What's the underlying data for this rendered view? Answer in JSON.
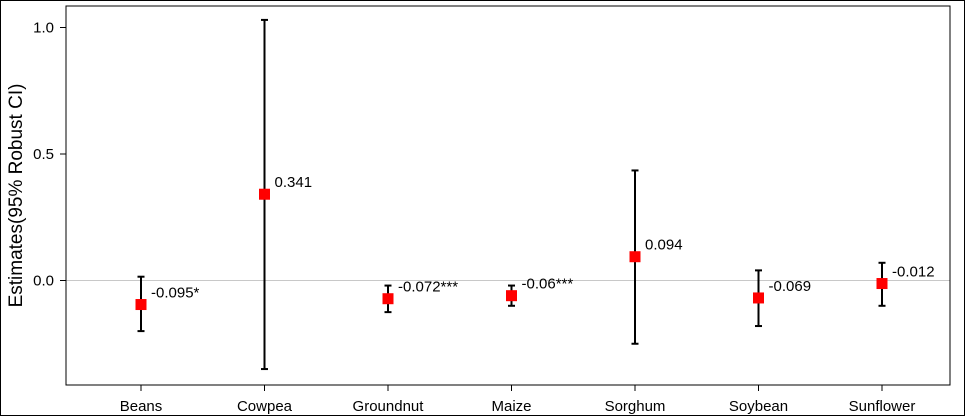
{
  "chart_data": {
    "type": "scatter",
    "subtype": "point-estimate-with-error-bars",
    "title": "",
    "xlabel": "",
    "ylabel": "Estimates(95% Robust CI)",
    "categories": [
      "Beans",
      "Cowpea",
      "Groundnut",
      "Maize",
      "Sorghum",
      "Soybean",
      "Sunflower"
    ],
    "values": [
      -0.095,
      0.341,
      -0.072,
      -0.06,
      0.094,
      -0.069,
      -0.012
    ],
    "ci_lower": [
      -0.2,
      -0.35,
      -0.125,
      -0.1,
      -0.25,
      -0.18,
      -0.1
    ],
    "ci_upper": [
      0.015,
      1.03,
      -0.02,
      -0.02,
      0.435,
      0.04,
      0.07
    ],
    "data_labels": [
      "-0.095*",
      "0.341",
      "-0.072***",
      "-0.06***",
      "0.094",
      "-0.069",
      "-0.012"
    ],
    "ylim": [
      -0.41,
      1.08
    ],
    "yticks": [
      0.0,
      0.5,
      1.0
    ],
    "ytick_labels": [
      "0.0",
      "0.5",
      "1.0"
    ],
    "reference_line": 0,
    "grid": false,
    "legend": "none",
    "colors": {
      "marker": "#ff0000",
      "error_bar": "#000000",
      "reference_line": "#c8c8c8",
      "axis": "#000000"
    }
  }
}
